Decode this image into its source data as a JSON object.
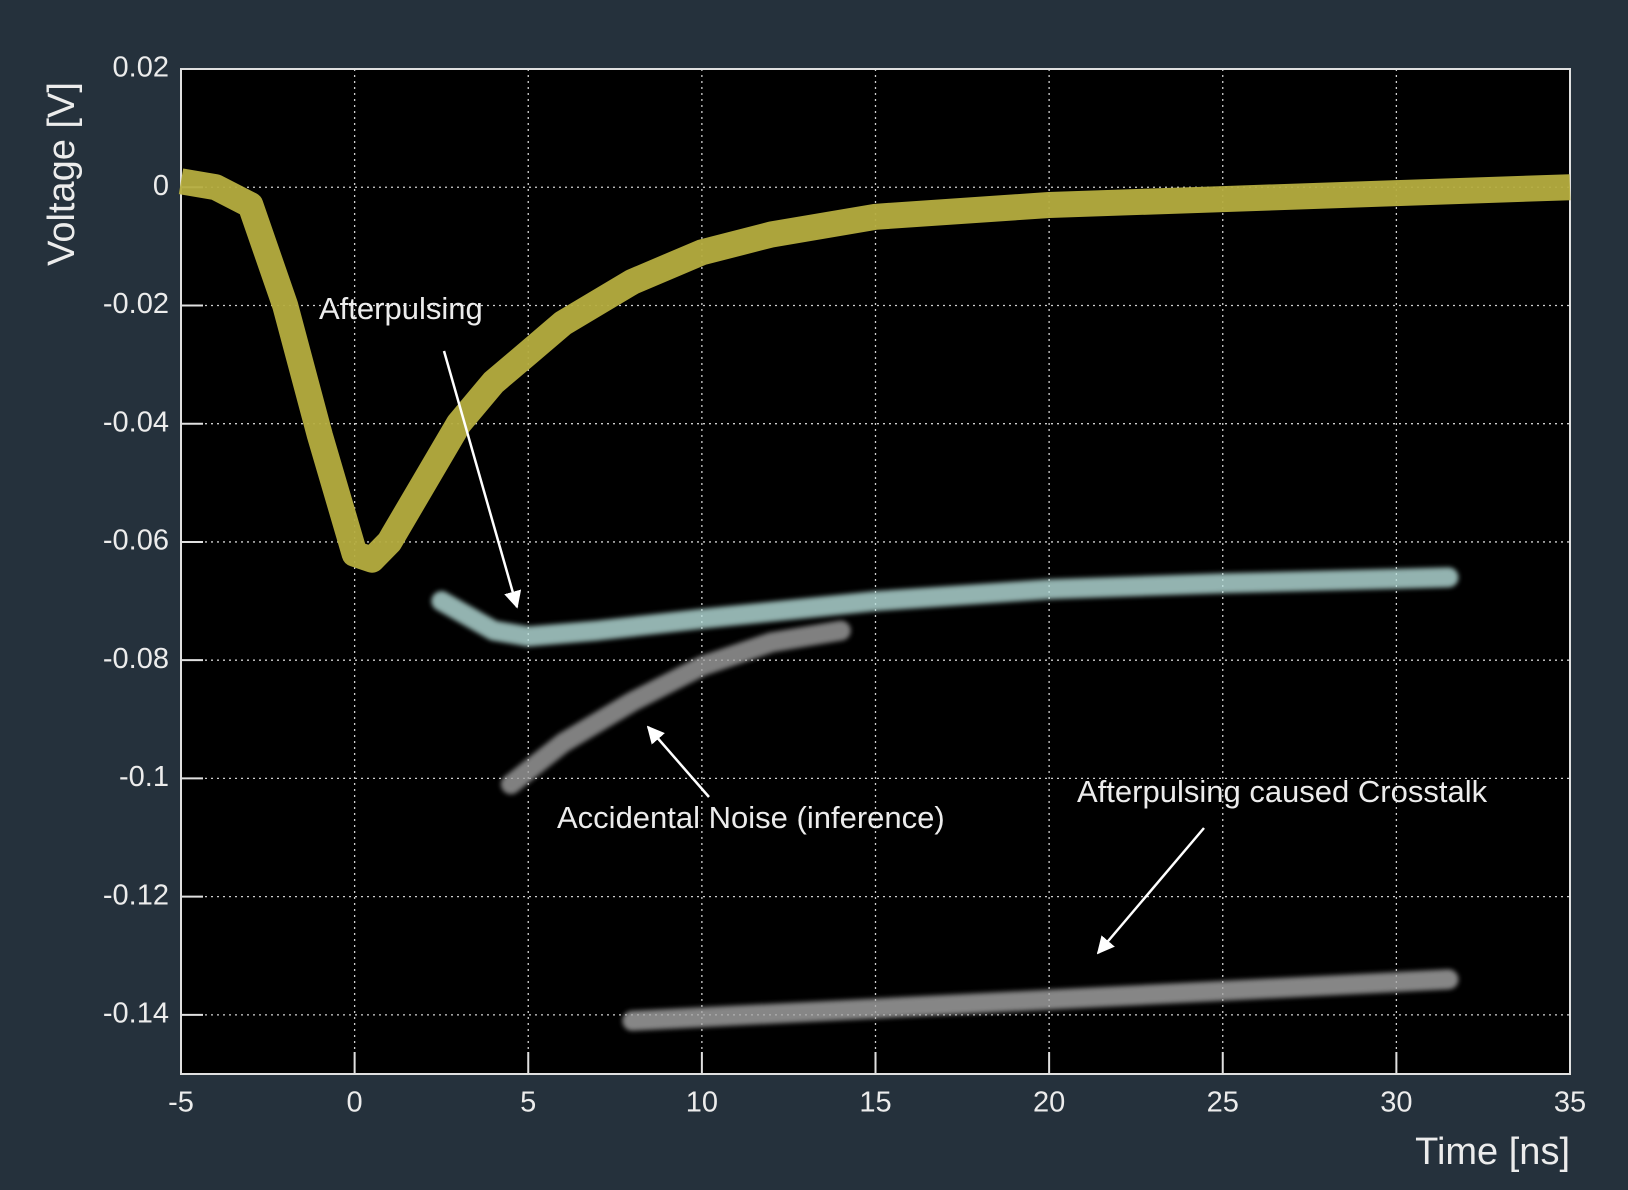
{
  "chart_data": {
    "type": "line",
    "x_label": "Time [ns]",
    "y_label": "Voltage [V]",
    "x": [
      -5,
      -4,
      -3,
      -2,
      -1,
      0,
      0.5,
      1,
      2,
      3,
      4,
      5,
      6,
      8,
      10,
      12,
      15,
      20,
      25,
      30,
      35
    ],
    "values": [
      0.001,
      0.0,
      -0.003,
      -0.02,
      -0.042,
      -0.062,
      -0.063,
      -0.06,
      -0.05,
      -0.04,
      -0.033,
      -0.028,
      -0.023,
      -0.016,
      -0.011,
      -0.008,
      -0.005,
      -0.003,
      -0.002,
      -0.001,
      0.0
    ],
    "color": "#b5ad3f",
    "bands": [
      {
        "color": "#b8e0dc",
        "x": [
          2.5,
          4,
          5,
          7,
          10,
          15,
          20,
          25,
          31.5
        ],
        "values": [
          -0.07,
          -0.075,
          -0.076,
          -0.075,
          -0.073,
          -0.07,
          -0.068,
          -0.067,
          -0.066
        ]
      },
      {
        "color": "#a0a0a0",
        "x": [
          4.5,
          6,
          8,
          10,
          12,
          14
        ],
        "values": [
          -0.101,
          -0.094,
          -0.087,
          -0.081,
          -0.077,
          -0.075
        ]
      },
      {
        "color": "#a8a8a8",
        "x": [
          8,
          31.5
        ],
        "values": [
          -0.141,
          -0.134
        ]
      }
    ],
    "annotations": [
      "Afterpulsing",
      "Accidental Noise (inference)",
      "Afterpulsing caused Crosstalk"
    ],
    "xlim": [
      -5,
      35
    ],
    "xticks": [
      -5,
      0,
      5,
      10,
      15,
      20,
      25,
      30,
      35
    ],
    "ylim": [
      -0.15,
      0.02
    ],
    "yticks": [
      0.02,
      0,
      -0.02,
      -0.04,
      -0.06,
      -0.08,
      -0.1,
      -0.12,
      -0.14
    ],
    "grid": true
  }
}
